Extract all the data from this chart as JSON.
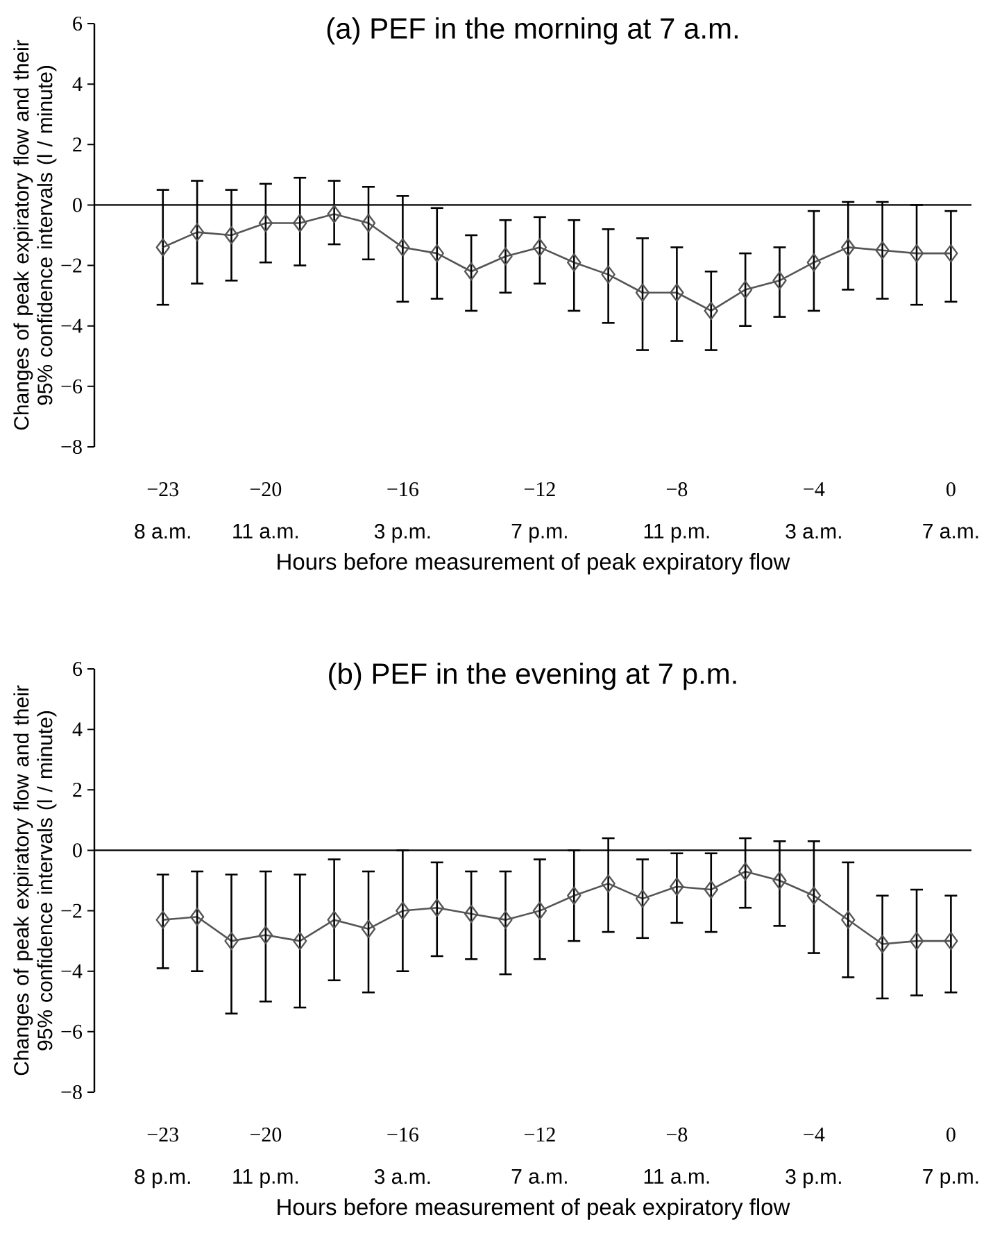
{
  "chart_data": [
    {
      "type": "line",
      "title": "(a) PEF in the morning at 7 a.m.",
      "xlabel": "Hours before measurement of peak expiratory flow",
      "ylabel": "Changes of peak expiratory flow and their 95% confidence intervals (l / minute)",
      "x": [
        -23,
        -22,
        -21,
        -20,
        -19,
        -18,
        -17,
        -16,
        -15,
        -14,
        -13,
        -12,
        -11,
        -10,
        -9,
        -8,
        -7,
        -6,
        -5,
        -4,
        -3,
        -2,
        -1,
        0
      ],
      "values": [
        -1.4,
        -0.9,
        -1.0,
        -0.6,
        -0.6,
        -0.3,
        -0.6,
        -1.4,
        -1.6,
        -2.2,
        -1.7,
        -1.4,
        -1.9,
        -2.3,
        -2.9,
        -2.9,
        -3.5,
        -2.8,
        -2.5,
        -1.9,
        -1.4,
        -1.5,
        -1.6,
        -1.6
      ],
      "errors": [
        [
          -3.3,
          0.5
        ],
        [
          -2.6,
          0.8
        ],
        [
          -2.5,
          0.5
        ],
        [
          -1.9,
          0.7
        ],
        [
          -2.0,
          0.9
        ],
        [
          -1.3,
          0.8
        ],
        [
          -1.8,
          0.6
        ],
        [
          -3.2,
          0.3
        ],
        [
          -3.1,
          -0.1
        ],
        [
          -3.5,
          -1.0
        ],
        [
          -2.9,
          -0.5
        ],
        [
          -2.6,
          -0.4
        ],
        [
          -3.5,
          -0.5
        ],
        [
          -3.9,
          -0.8
        ],
        [
          -4.8,
          -1.1
        ],
        [
          -4.5,
          -1.4
        ],
        [
          -4.8,
          -2.2
        ],
        [
          -4.0,
          -1.6
        ],
        [
          -3.7,
          -1.4
        ],
        [
          -3.5,
          -0.2
        ],
        [
          -2.8,
          0.1
        ],
        [
          -3.1,
          0.1
        ],
        [
          -3.3,
          0.0
        ],
        [
          -3.2,
          -0.2
        ]
      ],
      "color": "#555555",
      "marker": "diamond",
      "line_style": "solid",
      "xlim": [
        -25,
        0.6
      ],
      "ylim": [
        -8,
        6
      ],
      "xticks": [
        {
          "value": -23,
          "label": "−23"
        },
        {
          "value": -20,
          "label": "−20"
        },
        {
          "value": -16,
          "label": "−16"
        },
        {
          "value": -12,
          "label": "−12"
        },
        {
          "value": -8,
          "label": "−8"
        },
        {
          "value": -4,
          "label": "−4"
        },
        0
      ],
      "annotations": [
        "8 a.m.",
        "11 a.m.",
        "3 p.m.",
        "7 p.m.",
        "11 p.m.",
        "3 a.m.",
        "7 a.m."
      ],
      "yticks": [
        {
          "value": -8,
          "label": "−8"
        },
        {
          "value": -6,
          "label": "−6"
        },
        {
          "value": -4,
          "label": "−4"
        },
        {
          "value": -2,
          "label": "−2"
        },
        0,
        2,
        4,
        6
      ],
      "ref_lines": [
        {
          "axis": "y",
          "value": 0,
          "color": "#000000"
        }
      ]
    },
    {
      "type": "line",
      "title": "(b) PEF in the evening at 7 p.m.",
      "xlabel": "Hours before measurement of peak expiratory flow",
      "ylabel": "Changes of peak expiratory flow and their 95% confidence intervals (l / minute)",
      "x": [
        -23,
        -22,
        -21,
        -20,
        -19,
        -18,
        -17,
        -16,
        -15,
        -14,
        -13,
        -12,
        -11,
        -10,
        -9,
        -8,
        -7,
        -6,
        -5,
        -4,
        -3,
        -2,
        -1,
        0
      ],
      "values": [
        -2.3,
        -2.2,
        -3.0,
        -2.8,
        -3.0,
        -2.3,
        -2.6,
        -2.0,
        -1.9,
        -2.1,
        -2.3,
        -2.0,
        -1.5,
        -1.1,
        -1.6,
        -1.2,
        -1.3,
        -0.7,
        -1.0,
        -1.5,
        -2.3,
        -3.1,
        -3.0,
        -3.0
      ],
      "errors": [
        [
          -3.9,
          -0.8
        ],
        [
          -4.0,
          -0.7
        ],
        [
          -5.4,
          -0.8
        ],
        [
          -5.0,
          -0.7
        ],
        [
          -5.2,
          -0.8
        ],
        [
          -4.3,
          -0.3
        ],
        [
          -4.7,
          -0.7
        ],
        [
          -4.0,
          0.0
        ],
        [
          -3.5,
          -0.4
        ],
        [
          -3.6,
          -0.7
        ],
        [
          -4.1,
          -0.7
        ],
        [
          -3.6,
          -0.3
        ],
        [
          -3.0,
          0.0
        ],
        [
          -2.7,
          0.4
        ],
        [
          -2.9,
          -0.3
        ],
        [
          -2.4,
          -0.1
        ],
        [
          -2.7,
          -0.1
        ],
        [
          -1.9,
          0.4
        ],
        [
          -2.5,
          0.3
        ],
        [
          -3.4,
          0.3
        ],
        [
          -4.2,
          -0.4
        ],
        [
          -4.9,
          -1.5
        ],
        [
          -4.8,
          -1.3
        ],
        [
          -4.7,
          -1.5
        ]
      ],
      "color": "#555555",
      "marker": "diamond",
      "line_style": "solid",
      "xlim": [
        -25,
        0.6
      ],
      "ylim": [
        -8,
        6
      ],
      "xticks": [
        {
          "value": -23,
          "label": "−23"
        },
        {
          "value": -20,
          "label": "−20"
        },
        {
          "value": -16,
          "label": "−16"
        },
        {
          "value": -12,
          "label": "−12"
        },
        {
          "value": -8,
          "label": "−8"
        },
        {
          "value": -4,
          "label": "−4"
        },
        0
      ],
      "annotations": [
        "8 p.m.",
        "11 p.m.",
        "3 a.m.",
        "7 a.m.",
        "11 a.m.",
        "3 p.m.",
        "7 p.m."
      ],
      "yticks": [
        {
          "value": -8,
          "label": "−8"
        },
        {
          "value": -6,
          "label": "−6"
        },
        {
          "value": -4,
          "label": "−4"
        },
        {
          "value": -2,
          "label": "−2"
        },
        0,
        2,
        4,
        6
      ],
      "ref_lines": [
        {
          "axis": "y",
          "value": 0,
          "color": "#000000"
        }
      ]
    }
  ]
}
